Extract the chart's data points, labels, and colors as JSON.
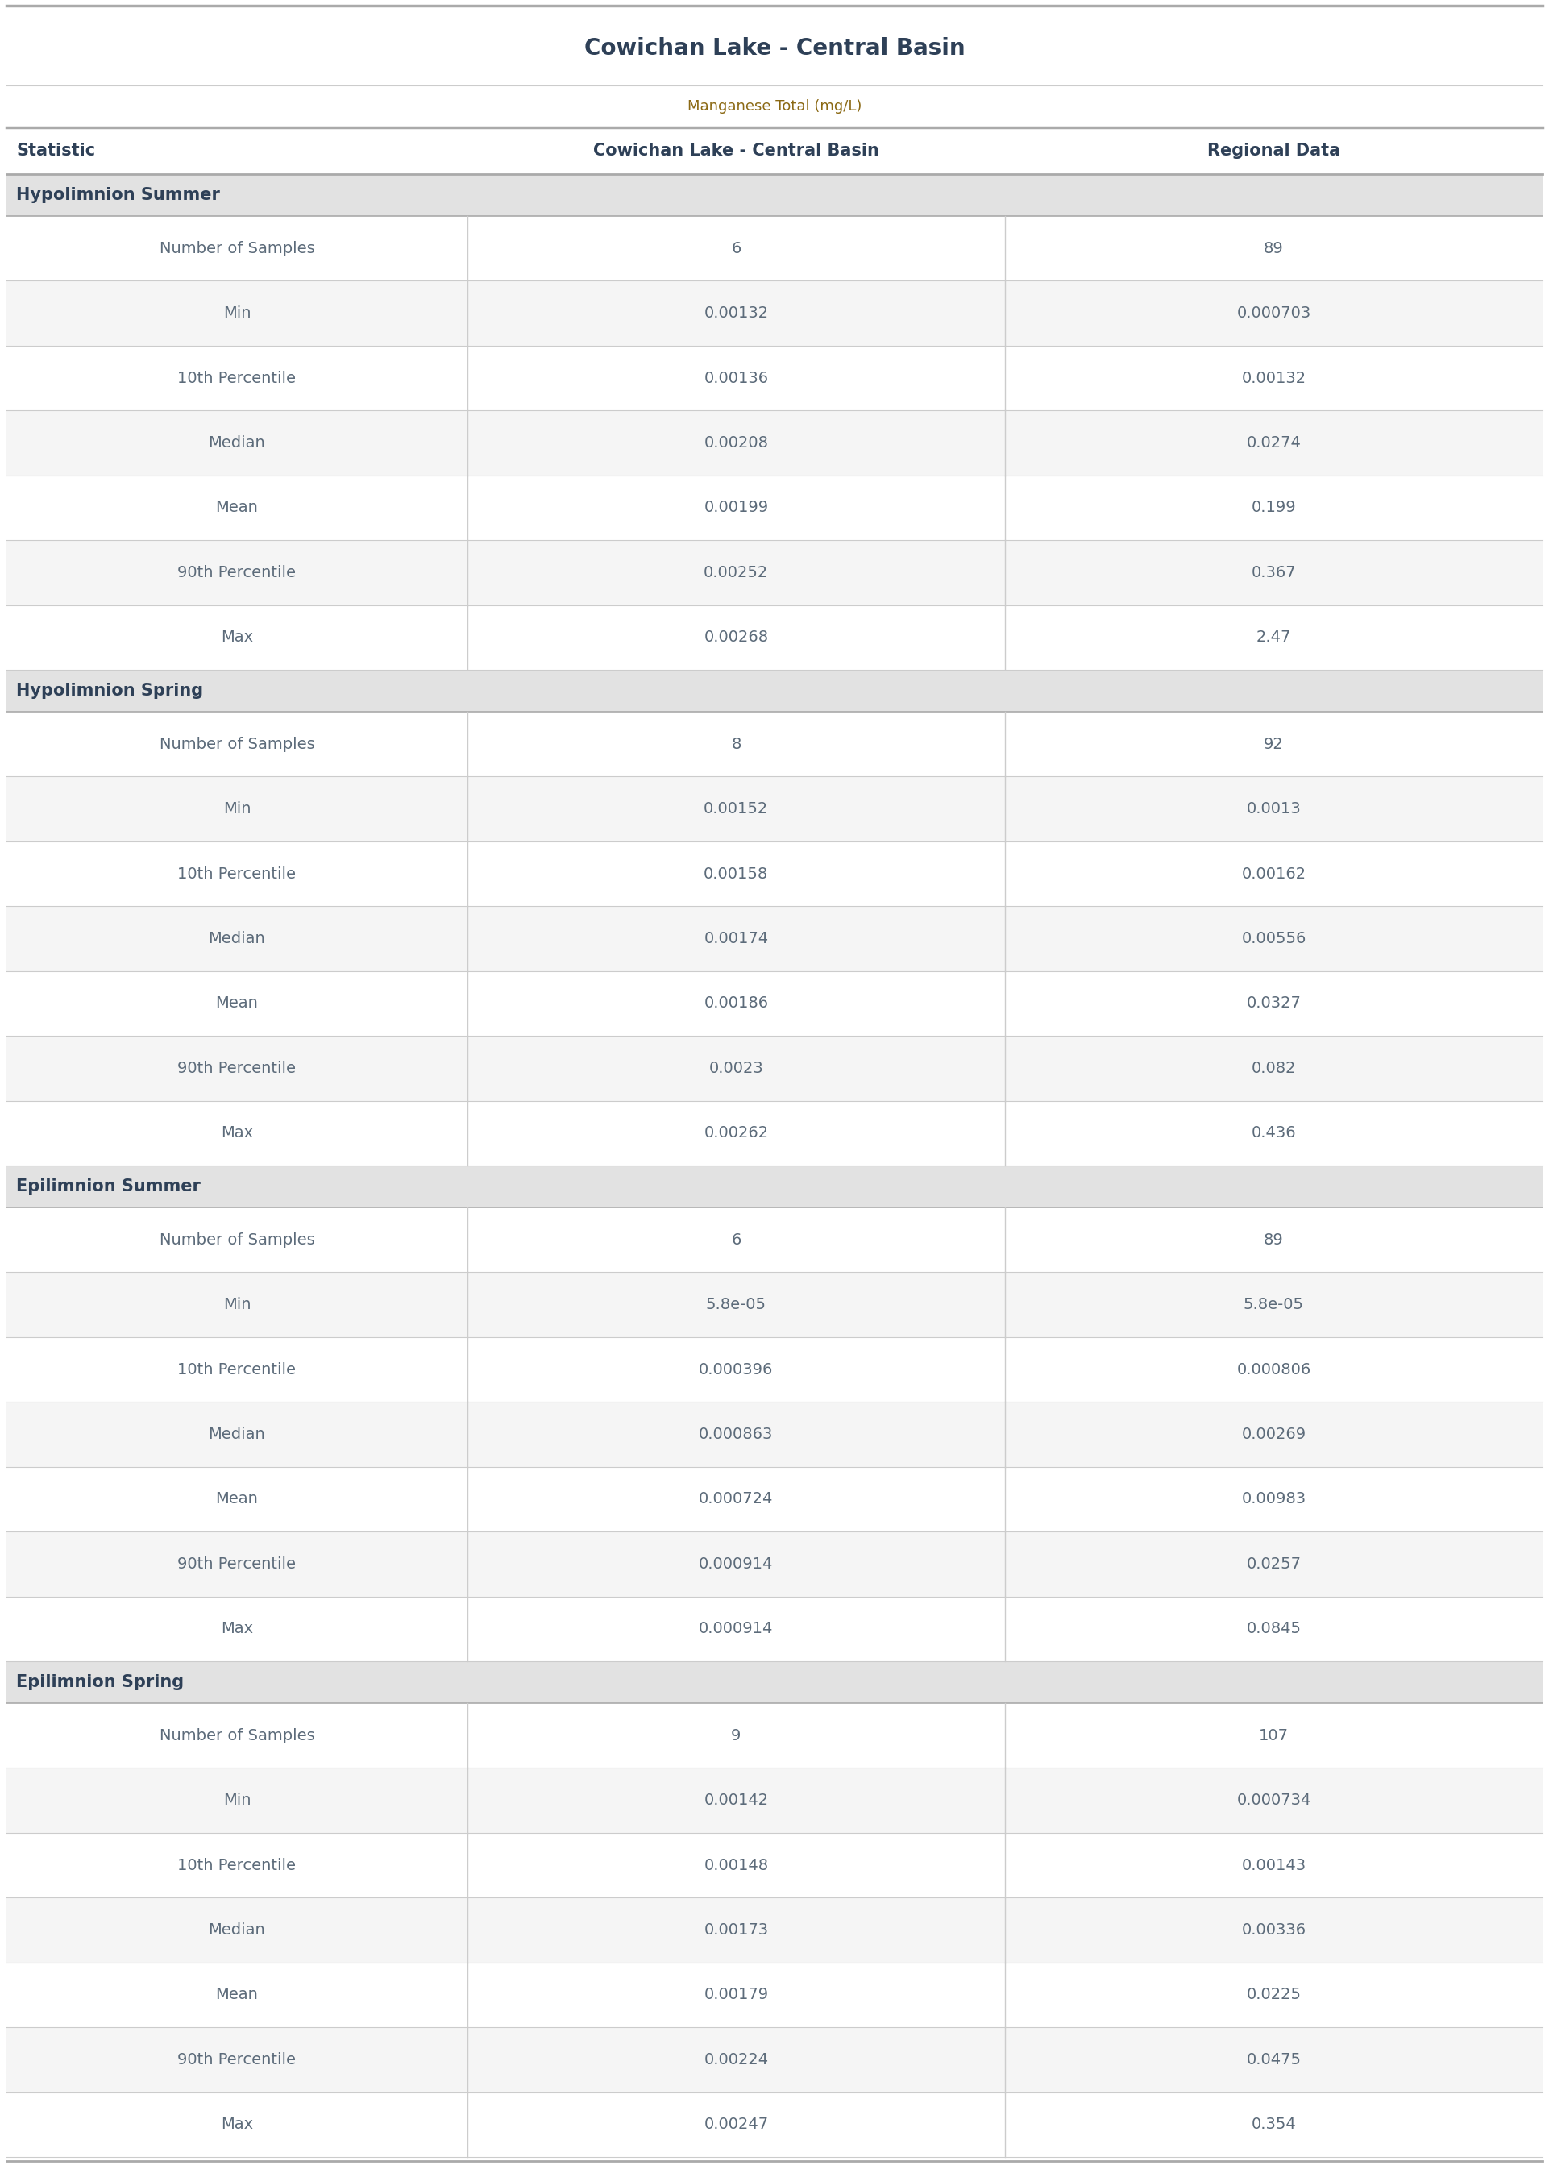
{
  "title": "Cowichan Lake - Central Basin",
  "subtitle": "Manganese Total (mg/L)",
  "col_headers": [
    "Statistic",
    "Cowichan Lake - Central Basin",
    "Regional Data"
  ],
  "sections": [
    {
      "section_name": "Hypolimnion Summer",
      "rows": [
        [
          "Number of Samples",
          "6",
          "89"
        ],
        [
          "Min",
          "0.00132",
          "0.000703"
        ],
        [
          "10th Percentile",
          "0.00136",
          "0.00132"
        ],
        [
          "Median",
          "0.00208",
          "0.0274"
        ],
        [
          "Mean",
          "0.00199",
          "0.199"
        ],
        [
          "90th Percentile",
          "0.00252",
          "0.367"
        ],
        [
          "Max",
          "0.00268",
          "2.47"
        ]
      ]
    },
    {
      "section_name": "Hypolimnion Spring",
      "rows": [
        [
          "Number of Samples",
          "8",
          "92"
        ],
        [
          "Min",
          "0.00152",
          "0.0013"
        ],
        [
          "10th Percentile",
          "0.00158",
          "0.00162"
        ],
        [
          "Median",
          "0.00174",
          "0.00556"
        ],
        [
          "Mean",
          "0.00186",
          "0.0327"
        ],
        [
          "90th Percentile",
          "0.0023",
          "0.082"
        ],
        [
          "Max",
          "0.00262",
          "0.436"
        ]
      ]
    },
    {
      "section_name": "Epilimnion Summer",
      "rows": [
        [
          "Number of Samples",
          "6",
          "89"
        ],
        [
          "Min",
          "5.8e-05",
          "5.8e-05"
        ],
        [
          "10th Percentile",
          "0.000396",
          "0.000806"
        ],
        [
          "Median",
          "0.000863",
          "0.00269"
        ],
        [
          "Mean",
          "0.000724",
          "0.00983"
        ],
        [
          "90th Percentile",
          "0.000914",
          "0.0257"
        ],
        [
          "Max",
          "0.000914",
          "0.0845"
        ]
      ]
    },
    {
      "section_name": "Epilimnion Spring",
      "rows": [
        [
          "Number of Samples",
          "9",
          "107"
        ],
        [
          "Min",
          "0.00142",
          "0.000734"
        ],
        [
          "10th Percentile",
          "0.00148",
          "0.00143"
        ],
        [
          "Median",
          "0.00173",
          "0.00336"
        ],
        [
          "Mean",
          "0.00179",
          "0.0225"
        ],
        [
          "90th Percentile",
          "0.00224",
          "0.0475"
        ],
        [
          "Max",
          "0.00247",
          "0.354"
        ]
      ]
    }
  ],
  "title_color": "#2E4057",
  "subtitle_color": "#8B6914",
  "header_text_color": "#2E4057",
  "section_bg_color": "#E2E2E2",
  "section_text_color": "#2E4057",
  "row_bg_odd": "#FFFFFF",
  "row_bg_even": "#F5F5F5",
  "data_text_color": "#5C6B7A",
  "border_color": "#CCCCCC",
  "top_border_color": "#AAAAAA",
  "col_splits": [
    0.3,
    0.65
  ],
  "title_fontsize": 20,
  "subtitle_fontsize": 13,
  "header_fontsize": 15,
  "section_fontsize": 15,
  "data_fontsize": 14
}
